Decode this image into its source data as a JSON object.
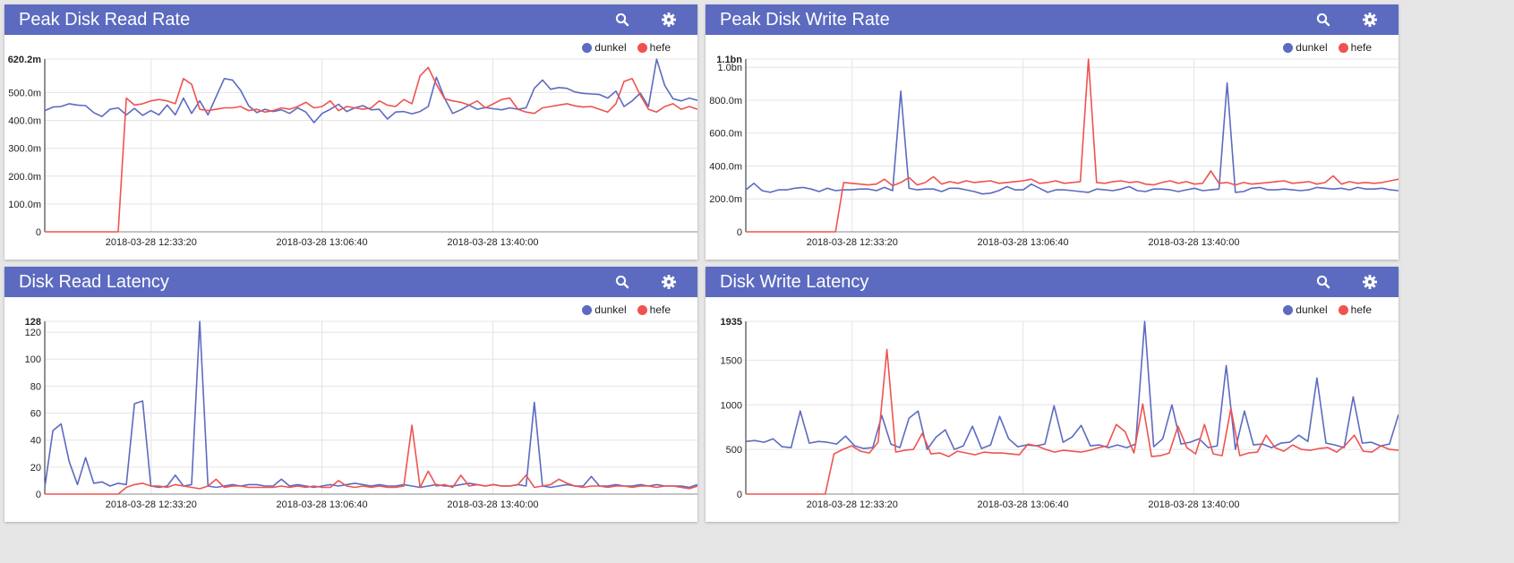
{
  "colors": {
    "header": "#5c6bc0",
    "dunkel": "#5c6bc0",
    "hefe": "#ef5350"
  },
  "icons": {
    "search": "search-icon",
    "settings": "gear-icon"
  },
  "chart_data": [
    {
      "type": "line",
      "title": "Peak Disk Read Rate",
      "x_ticks": [
        "2018-03-28 12:33:20",
        "2018-03-28 13:06:40",
        "2018-03-28 13:40:00"
      ],
      "y_ticks": [
        {
          "v": 0,
          "label": "0"
        },
        {
          "v": 100,
          "label": "100.0m"
        },
        {
          "v": 200,
          "label": "200.0m"
        },
        {
          "v": 300,
          "label": "300.0m"
        },
        {
          "v": 400,
          "label": "400.0m"
        },
        {
          "v": 500,
          "label": "500.0m"
        }
      ],
      "y_max_label": "620.2m",
      "ylim": [
        0,
        620.2
      ],
      "series": [
        {
          "name": "dunkel",
          "values": [
            435,
            448,
            450,
            460,
            455,
            453,
            428,
            414,
            440,
            445,
            420,
            443,
            418,
            435,
            420,
            455,
            420,
            480,
            425,
            470,
            420,
            485,
            550,
            545,
            508,
            452,
            428,
            440,
            432,
            438,
            425,
            445,
            430,
            392,
            425,
            440,
            458,
            432,
            445,
            453,
            438,
            440,
            405,
            430,
            432,
            424,
            432,
            450,
            555,
            480,
            425,
            438,
            455,
            440,
            446,
            442,
            438,
            445,
            440,
            445,
            515,
            545,
            512,
            518,
            515,
            502,
            497,
            495,
            493,
            480,
            505,
            450,
            470,
            498,
            450,
            620,
            525,
            478,
            470,
            480,
            472
          ],
          "mark_color": "#5c6bc0"
        },
        {
          "name": "hefe",
          "values": [
            0,
            0,
            0,
            0,
            0,
            0,
            0,
            0,
            0,
            0,
            480,
            455,
            460,
            470,
            475,
            470,
            460,
            550,
            530,
            440,
            435,
            440,
            445,
            445,
            450,
            435,
            440,
            430,
            435,
            445,
            440,
            450,
            465,
            445,
            450,
            470,
            435,
            450,
            445,
            440,
            445,
            470,
            455,
            450,
            475,
            460,
            560,
            590,
            530,
            478,
            470,
            465,
            455,
            470,
            445,
            460,
            475,
            480,
            440,
            430,
            425,
            445,
            450,
            455,
            460,
            452,
            448,
            450,
            440,
            430,
            460,
            540,
            550,
            490,
            440,
            430,
            450,
            460,
            440,
            450,
            440
          ],
          "mark_color": "#ef5350"
        }
      ]
    },
    {
      "type": "line",
      "title": "Peak Disk Write Rate",
      "x_ticks": [
        "2018-03-28 12:33:20",
        "2018-03-28 13:06:40",
        "2018-03-28 13:40:00"
      ],
      "y_ticks": [
        {
          "v": 0,
          "label": "0"
        },
        {
          "v": 200,
          "label": "200.0m"
        },
        {
          "v": 400,
          "label": "400.0m"
        },
        {
          "v": 600,
          "label": "600.0m"
        },
        {
          "v": 800,
          "label": "800.0m"
        },
        {
          "v": 1000,
          "label": "1.0bn"
        }
      ],
      "y_max_label": "1.1bn",
      "ylim": [
        0,
        1050
      ],
      "series": [
        {
          "name": "dunkel",
          "values": [
            255,
            295,
            250,
            240,
            255,
            255,
            265,
            270,
            260,
            245,
            265,
            250,
            255,
            255,
            260,
            260,
            250,
            270,
            250,
            855,
            265,
            255,
            260,
            260,
            245,
            265,
            265,
            255,
            245,
            230,
            235,
            250,
            275,
            255,
            255,
            290,
            265,
            240,
            255,
            255,
            250,
            245,
            240,
            260,
            255,
            250,
            260,
            275,
            250,
            245,
            260,
            260,
            255,
            245,
            255,
            265,
            250,
            255,
            260,
            905,
            240,
            245,
            265,
            270,
            255,
            255,
            260,
            255,
            250,
            255,
            270,
            265,
            260,
            265,
            255,
            270,
            260,
            260,
            265,
            255,
            250
          ],
          "mark_color": "#5c6bc0"
        },
        {
          "name": "hefe",
          "values": [
            0,
            0,
            0,
            0,
            0,
            0,
            0,
            0,
            0,
            0,
            0,
            0,
            300,
            295,
            290,
            285,
            290,
            320,
            280,
            300,
            330,
            285,
            300,
            335,
            290,
            305,
            295,
            310,
            300,
            305,
            310,
            295,
            300,
            305,
            310,
            320,
            295,
            300,
            310,
            295,
            300,
            305,
            1050,
            300,
            295,
            305,
            310,
            300,
            305,
            290,
            285,
            300,
            310,
            295,
            305,
            290,
            295,
            370,
            295,
            300,
            285,
            300,
            290,
            295,
            300,
            305,
            310,
            295,
            300,
            305,
            290,
            300,
            340,
            290,
            305,
            295,
            300,
            295,
            300,
            310,
            320
          ],
          "mark_color": "#ef5350"
        }
      ]
    },
    {
      "type": "line",
      "title": "Disk Read Latency",
      "x_ticks": [
        "2018-03-28 12:33:20",
        "2018-03-28 13:06:40",
        "2018-03-28 13:40:00"
      ],
      "y_ticks": [
        {
          "v": 0,
          "label": "0"
        },
        {
          "v": 20,
          "label": "20"
        },
        {
          "v": 40,
          "label": "40"
        },
        {
          "v": 60,
          "label": "60"
        },
        {
          "v": 80,
          "label": "80"
        },
        {
          "v": 100,
          "label": "100"
        },
        {
          "v": 120,
          "label": "120"
        }
      ],
      "y_max_label": "128",
      "ylim": [
        0,
        128
      ],
      "series": [
        {
          "name": "dunkel",
          "values": [
            5,
            47,
            52,
            24,
            7,
            27,
            8,
            9,
            6,
            8,
            7,
            67,
            69,
            6,
            5,
            6,
            14,
            6,
            7,
            128,
            6,
            5,
            6,
            7,
            6,
            7,
            7,
            6,
            6,
            11,
            6,
            7,
            6,
            5,
            6,
            7,
            6,
            7,
            8,
            7,
            6,
            7,
            6,
            6,
            7,
            6,
            5,
            6,
            7,
            6,
            6,
            7,
            8,
            7,
            6,
            7,
            6,
            6,
            7,
            6,
            68,
            6,
            5,
            6,
            7,
            6,
            6,
            13,
            6,
            6,
            7,
            6,
            6,
            7,
            6,
            7,
            6,
            6,
            6,
            5,
            7
          ],
          "mark_color": "#5c6bc0"
        },
        {
          "name": "hefe",
          "values": [
            0,
            0,
            0,
            0,
            0,
            0,
            0,
            0,
            0,
            0,
            5,
            7,
            8,
            6,
            6,
            5,
            7,
            6,
            5,
            4,
            6,
            11,
            5,
            6,
            6,
            5,
            5,
            5,
            5,
            6,
            5,
            6,
            5,
            6,
            5,
            5,
            10,
            6,
            5,
            6,
            5,
            6,
            5,
            5,
            6,
            51,
            5,
            17,
            6,
            7,
            5,
            14,
            6,
            7,
            6,
            7,
            6,
            6,
            7,
            14,
            5,
            6,
            7,
            11,
            8,
            6,
            5,
            6,
            6,
            5,
            6,
            6,
            5,
            6,
            6,
            5,
            6,
            6,
            5,
            4,
            6
          ],
          "mark_color": "#ef5350"
        }
      ]
    },
    {
      "type": "line",
      "title": "Disk Write Latency",
      "x_ticks": [
        "2018-03-28 12:33:20",
        "2018-03-28 13:06:40",
        "2018-03-28 13:40:00"
      ],
      "y_ticks": [
        {
          "v": 0,
          "label": "0"
        },
        {
          "v": 500,
          "label": "500"
        },
        {
          "v": 1000,
          "label": "1000"
        },
        {
          "v": 1500,
          "label": "1500"
        }
      ],
      "y_max_label": "1935",
      "ylim": [
        0,
        1935
      ],
      "series": [
        {
          "name": "dunkel",
          "values": [
            590,
            600,
            580,
            620,
            530,
            520,
            930,
            570,
            590,
            580,
            560,
            650,
            540,
            510,
            520,
            880,
            560,
            520,
            850,
            930,
            500,
            640,
            720,
            500,
            540,
            760,
            510,
            550,
            870,
            620,
            530,
            550,
            540,
            560,
            990,
            580,
            640,
            770,
            540,
            550,
            520,
            550,
            520,
            560,
            1935,
            530,
            620,
            1000,
            560,
            580,
            620,
            520,
            540,
            1440,
            500,
            930,
            550,
            560,
            520,
            570,
            580,
            660,
            590,
            1300,
            570,
            550,
            520,
            1090,
            570,
            580,
            540,
            560,
            890
          ],
          "mark_color": "#5c6bc0"
        },
        {
          "name": "hefe",
          "values": [
            0,
            0,
            0,
            0,
            0,
            0,
            0,
            0,
            0,
            0,
            450,
            500,
            540,
            480,
            460,
            580,
            1620,
            470,
            490,
            500,
            680,
            450,
            460,
            420,
            480,
            460,
            440,
            470,
            460,
            460,
            450,
            440,
            560,
            540,
            500,
            470,
            490,
            480,
            470,
            490,
            520,
            540,
            780,
            700,
            460,
            1010,
            420,
            430,
            460,
            760,
            520,
            450,
            780,
            450,
            430,
            960,
            430,
            460,
            470,
            660,
            520,
            480,
            550,
            500,
            490,
            510,
            520,
            470,
            550,
            660,
            480,
            470,
            540,
            500,
            490
          ],
          "mark_color": "#ef5350"
        }
      ]
    }
  ]
}
